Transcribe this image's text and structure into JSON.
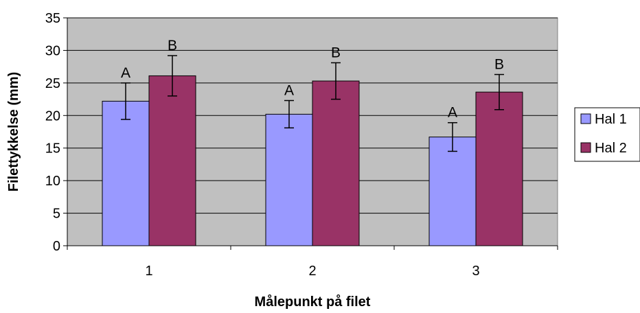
{
  "chart_data": {
    "type": "bar",
    "title": "",
    "xlabel": "Målepunkt på filet",
    "ylabel": "Filettykkelse (mm)",
    "ylim": [
      0,
      35
    ],
    "yticks": [
      0,
      5,
      10,
      15,
      20,
      25,
      30,
      35
    ],
    "categories": [
      "1",
      "2",
      "3"
    ],
    "series": [
      {
        "name": "Hal 1",
        "color": "#9999ff",
        "values": [
          22.2,
          20.2,
          16.7
        ],
        "error": [
          2.8,
          2.1,
          2.2
        ],
        "labels": [
          "A",
          "A",
          "A"
        ]
      },
      {
        "name": "Hal 2",
        "color": "#993366",
        "values": [
          26.1,
          25.3,
          23.6
        ],
        "error": [
          3.1,
          2.8,
          2.7
        ],
        "labels": [
          "B",
          "B",
          "B"
        ]
      }
    ],
    "grid": true,
    "plot_background": "#c0c0c0",
    "legend_position": "right",
    "error_bars": true
  }
}
